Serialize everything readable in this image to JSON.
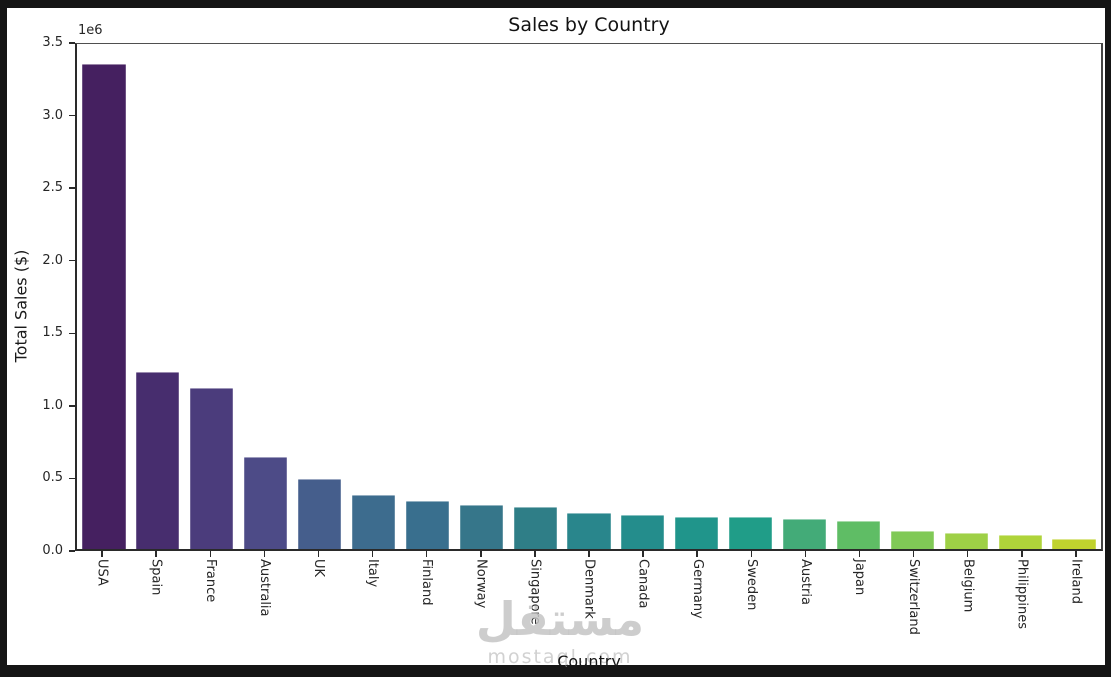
{
  "window": {
    "frame_color": "#151515",
    "canvas_color": "#ffffff"
  },
  "chart_data": {
    "type": "bar",
    "title": "Sales by Country",
    "xlabel": "Country",
    "ylabel": "Total Sales ($)",
    "offset_text": "1e6",
    "categories": [
      "USA",
      "Spain",
      "France",
      "Australia",
      "UK",
      "Italy",
      "Finland",
      "Norway",
      "Singapore",
      "Denmark",
      "Canada",
      "Germany",
      "Sweden",
      "Austria",
      "Japan",
      "Switzerland",
      "Belgium",
      "Philippines",
      "Ireland"
    ],
    "values": [
      3360000,
      1225000,
      1115000,
      635000,
      485000,
      375000,
      330000,
      308000,
      294000,
      249000,
      235000,
      225000,
      221000,
      211000,
      192000,
      127000,
      111000,
      95000,
      68000
    ],
    "bar_colors": [
      "#452060",
      "#472d6e",
      "#4b3c7c",
      "#4d4b87",
      "#455e8c",
      "#3d6c8e",
      "#396f8e",
      "#36768a",
      "#2f7e87",
      "#29868c",
      "#248d8c",
      "#20958b",
      "#209d88",
      "#43ab78",
      "#5fbd65",
      "#80c956",
      "#9ed046",
      "#afd43a",
      "#c0d22e"
    ],
    "ylim": [
      0,
      3500000
    ],
    "ytick_labels": [
      "0.0",
      "0.5",
      "1.0",
      "1.5",
      "2.0",
      "2.5",
      "3.0",
      "3.5"
    ],
    "grid": false,
    "legend": null,
    "palette": "viridis"
  },
  "watermark": {
    "logo": "مستقل",
    "site": "mostaql.com"
  }
}
